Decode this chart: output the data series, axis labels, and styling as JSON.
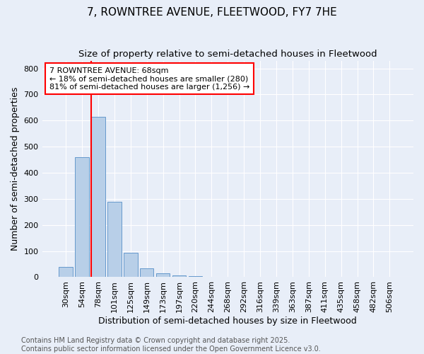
{
  "title1": "7, ROWNTREE AVENUE, FLEETWOOD, FY7 7HE",
  "title2": "Size of property relative to semi-detached houses in Fleetwood",
  "xlabel": "Distribution of semi-detached houses by size in Fleetwood",
  "ylabel": "Number of semi-detached properties",
  "categories": [
    "30sqm",
    "54sqm",
    "78sqm",
    "101sqm",
    "125sqm",
    "149sqm",
    "173sqm",
    "197sqm",
    "220sqm",
    "244sqm",
    "268sqm",
    "292sqm",
    "316sqm",
    "339sqm",
    "363sqm",
    "387sqm",
    "411sqm",
    "435sqm",
    "458sqm",
    "482sqm",
    "506sqm"
  ],
  "values": [
    40,
    460,
    615,
    290,
    93,
    33,
    15,
    8,
    5,
    0,
    0,
    0,
    0,
    0,
    0,
    0,
    0,
    0,
    0,
    0,
    0
  ],
  "bar_color": "#b8cfe8",
  "bar_edge_color": "#6699cc",
  "background_color": "#e8eef8",
  "grid_color": "#ffffff",
  "vline_x": 1.55,
  "vline_color": "red",
  "annotation_text": "7 ROWNTREE AVENUE: 68sqm\n← 18% of semi-detached houses are smaller (280)\n81% of semi-detached houses are larger (1,256) →",
  "annotation_box_color": "white",
  "annotation_edge_color": "red",
  "ylim": [
    0,
    830
  ],
  "yticks": [
    0,
    100,
    200,
    300,
    400,
    500,
    600,
    700,
    800
  ],
  "footer": "Contains HM Land Registry data © Crown copyright and database right 2025.\nContains public sector information licensed under the Open Government Licence v3.0.",
  "title1_fontsize": 11,
  "title2_fontsize": 9.5,
  "xlabel_fontsize": 9,
  "ylabel_fontsize": 9,
  "tick_fontsize": 8,
  "footer_fontsize": 7,
  "annot_fontsize": 8
}
